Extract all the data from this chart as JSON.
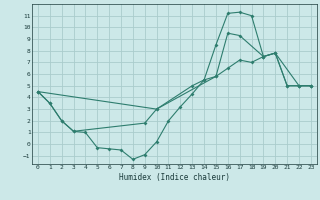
{
  "xlabel": "Humidex (Indice chaleur)",
  "bg_color": "#cce8e8",
  "grid_color": "#aacccc",
  "line_color": "#2e7d6e",
  "xlim": [
    -0.5,
    23.5
  ],
  "ylim": [
    -1.7,
    12.0
  ],
  "xticks": [
    0,
    1,
    2,
    3,
    4,
    5,
    6,
    7,
    8,
    9,
    10,
    11,
    12,
    13,
    14,
    15,
    16,
    17,
    18,
    19,
    20,
    21,
    22,
    23
  ],
  "yticks": [
    -1,
    0,
    1,
    2,
    3,
    4,
    5,
    6,
    7,
    8,
    9,
    10,
    11
  ],
  "line1_x": [
    0,
    1,
    2,
    3,
    4,
    5,
    6,
    7,
    8,
    9,
    10,
    11,
    12,
    13,
    14,
    15,
    16,
    17,
    18,
    19,
    20,
    21,
    22,
    23
  ],
  "line1_y": [
    4.5,
    3.5,
    2.0,
    1.1,
    1.0,
    -0.3,
    -0.4,
    -0.5,
    -1.3,
    -0.9,
    0.2,
    2.0,
    3.2,
    4.3,
    5.5,
    8.5,
    11.2,
    11.3,
    11.0,
    7.5,
    7.8,
    5.0,
    5.0,
    5.0
  ],
  "line2_x": [
    0,
    10,
    15,
    16,
    17,
    19,
    20,
    21,
    22,
    23
  ],
  "line2_y": [
    4.5,
    3.0,
    5.8,
    9.5,
    9.3,
    7.5,
    7.8,
    5.0,
    5.0,
    5.0
  ],
  "line3_x": [
    0,
    1,
    2,
    3,
    9,
    10,
    13,
    14,
    15,
    16,
    17,
    18,
    19,
    20,
    22,
    23
  ],
  "line3_y": [
    4.5,
    3.5,
    2.0,
    1.1,
    1.8,
    3.0,
    5.0,
    5.5,
    5.8,
    6.5,
    7.2,
    7.0,
    7.5,
    7.8,
    5.0,
    5.0
  ]
}
